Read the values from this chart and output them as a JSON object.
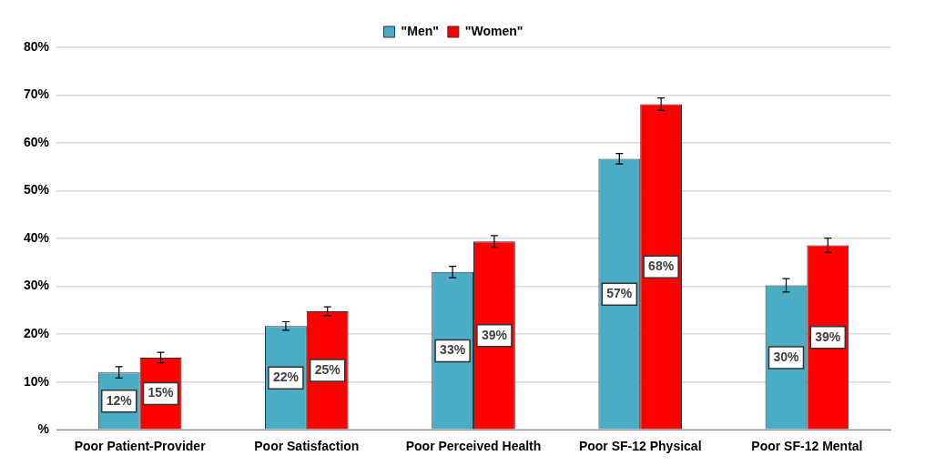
{
  "chart_data": {
    "type": "bar",
    "categories": [
      "Poor Patient-Provider",
      "Poor Satisfaction",
      "Poor Perceived Health",
      "Poor SF-12 Physical",
      "Poor SF-12 Mental"
    ],
    "series": [
      {
        "name": "\"Men\"",
        "color": "#4bacc6",
        "values": [
          12.0,
          21.7,
          33.0,
          56.7,
          30.2
        ],
        "errors": [
          1.2,
          0.9,
          1.2,
          1.1,
          1.4
        ],
        "value_labels": [
          "12%",
          "22%",
          "33%",
          "57%",
          "30%"
        ]
      },
      {
        "name": "\"Women\"",
        "color": "#ff0000",
        "values": [
          15.1,
          24.8,
          39.4,
          68.1,
          38.6
        ],
        "errors": [
          1.1,
          0.9,
          1.2,
          1.3,
          1.5
        ],
        "value_labels": [
          "15%",
          "25%",
          "39%",
          "68%",
          "39%"
        ]
      }
    ],
    "ylim": [
      0,
      80
    ],
    "yticks": [
      {
        "value": 0,
        "label": "%"
      },
      {
        "value": 10,
        "label": "10%"
      },
      {
        "value": 20,
        "label": "20%"
      },
      {
        "value": 30,
        "label": "30%"
      },
      {
        "value": 40,
        "label": "40%"
      },
      {
        "value": 50,
        "label": "50%"
      },
      {
        "value": 60,
        "label": "60%"
      },
      {
        "value": 70,
        "label": "70%"
      },
      {
        "value": 80,
        "label": "80%"
      }
    ],
    "grid": "y",
    "legend": "top"
  }
}
